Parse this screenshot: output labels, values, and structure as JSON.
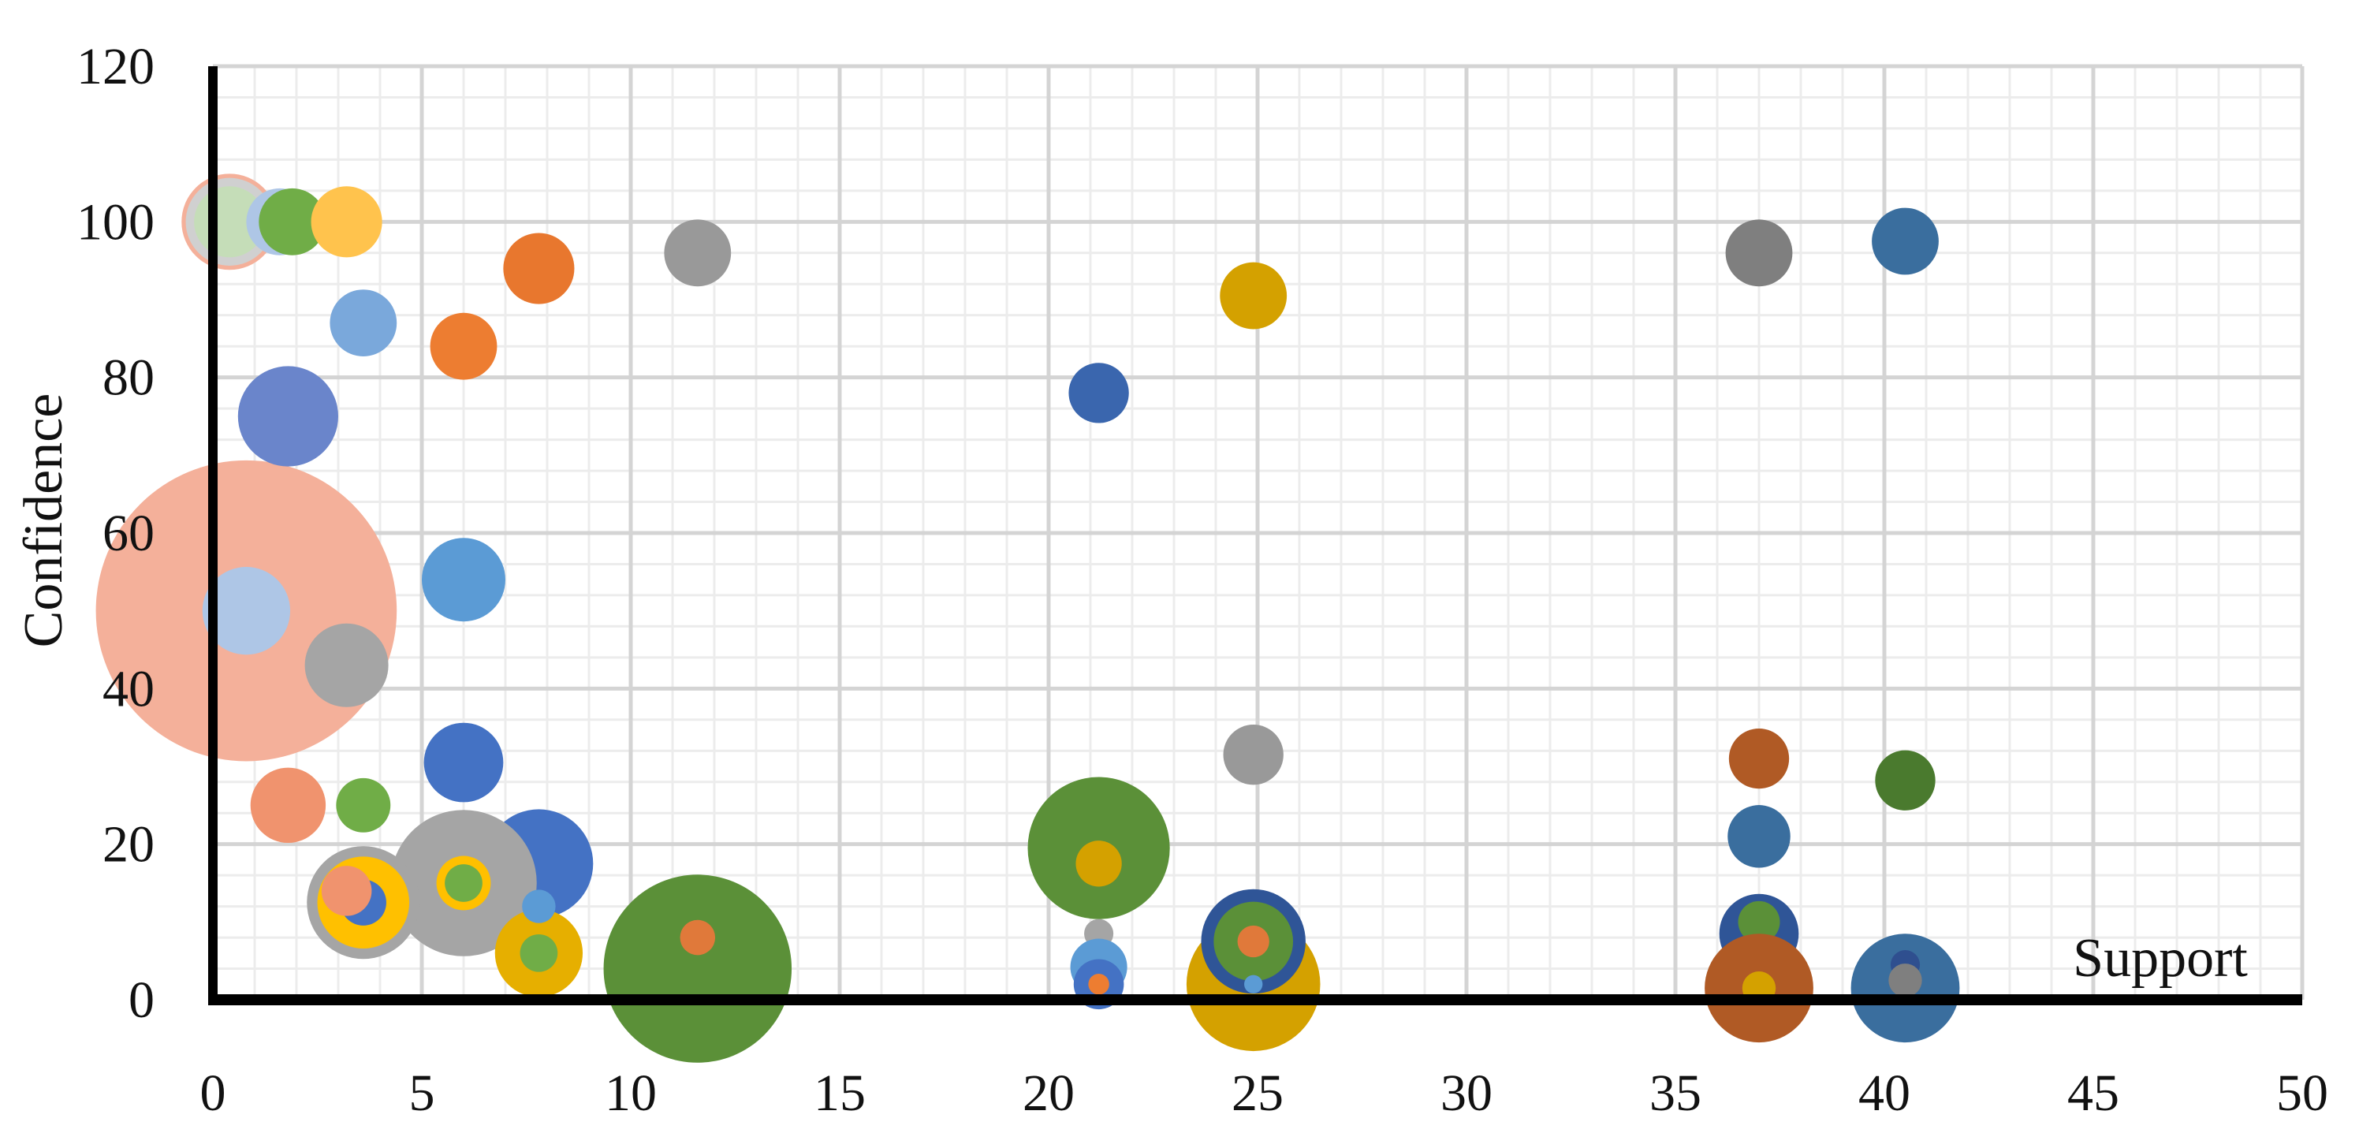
{
  "chart_data": {
    "type": "bubble",
    "xlabel": "Support",
    "ylabel": "Confidence",
    "xlim": [
      0,
      50
    ],
    "ylim": [
      0,
      120
    ],
    "x_ticks": [
      "0",
      "5",
      "10",
      "15",
      "20",
      "25",
      "30",
      "35",
      "40",
      "45",
      "50"
    ],
    "y_ticks": [
      "0",
      "20",
      "40",
      "60",
      "80",
      "100",
      "120"
    ],
    "grid": true,
    "minor_grid": true,
    "legend": "none",
    "points": [
      {
        "x": 0.8,
        "y": 50,
        "size": 3.6,
        "color": "#F4B09A"
      },
      {
        "x": 0.8,
        "y": 50,
        "size": 1.05,
        "color": "#AEC6E6"
      },
      {
        "x": 3.2,
        "y": 43,
        "size": 1.0,
        "color": "#A5A5A5"
      },
      {
        "x": 0.4,
        "y": 100,
        "size": 1.15,
        "color": "#F4B09A"
      },
      {
        "x": 0.4,
        "y": 100,
        "size": 1.05,
        "color": "#D0D0D0"
      },
      {
        "x": 0.4,
        "y": 100,
        "size": 0.85,
        "color": "#C5DDB8"
      },
      {
        "x": 1.6,
        "y": 100,
        "size": 0.8,
        "color": "#AEC6E6"
      },
      {
        "x": 1.9,
        "y": 100,
        "size": 0.8,
        "color": "#70AD47"
      },
      {
        "x": 3.2,
        "y": 100,
        "size": 0.85,
        "color": "#FFC34D"
      },
      {
        "x": 3.6,
        "y": 87,
        "size": 0.8,
        "color": "#7AA8DB"
      },
      {
        "x": 1.8,
        "y": 75,
        "size": 1.2,
        "color": "#6A85CB"
      },
      {
        "x": 6.0,
        "y": 84,
        "size": 0.8,
        "color": "#ED7D31"
      },
      {
        "x": 7.8,
        "y": 94,
        "size": 0.85,
        "color": "#E8772E"
      },
      {
        "x": 11.6,
        "y": 96,
        "size": 0.8,
        "color": "#999999"
      },
      {
        "x": 6.0,
        "y": 54,
        "size": 1.0,
        "color": "#5B9BD5"
      },
      {
        "x": 6.0,
        "y": 30.5,
        "size": 0.95,
        "color": "#4472C4"
      },
      {
        "x": 1.8,
        "y": 25,
        "size": 0.9,
        "color": "#F0936E"
      },
      {
        "x": 3.6,
        "y": 25,
        "size": 0.65,
        "color": "#70AD47"
      },
      {
        "x": 7.8,
        "y": 17.5,
        "size": 1.3,
        "color": "#4472C4"
      },
      {
        "x": 6.0,
        "y": 15,
        "size": 1.75,
        "color": "#A5A5A5"
      },
      {
        "x": 6.0,
        "y": 15,
        "size": 0.65,
        "color": "#FFC000"
      },
      {
        "x": 6.0,
        "y": 15,
        "size": 0.45,
        "color": "#70AD47"
      },
      {
        "x": 3.6,
        "y": 12.5,
        "size": 1.35,
        "color": "#A5A5A5"
      },
      {
        "x": 3.6,
        "y": 12.5,
        "size": 1.1,
        "color": "#FFC000"
      },
      {
        "x": 3.6,
        "y": 12.5,
        "size": 0.55,
        "color": "#4472C4"
      },
      {
        "x": 3.2,
        "y": 14,
        "size": 0.6,
        "color": "#F0936E"
      },
      {
        "x": 7.8,
        "y": 6,
        "size": 1.05,
        "color": "#E6AF00"
      },
      {
        "x": 7.8,
        "y": 6,
        "size": 0.45,
        "color": "#70AD47"
      },
      {
        "x": 7.8,
        "y": 12,
        "size": 0.4,
        "color": "#5B9BD5"
      },
      {
        "x": 11.6,
        "y": 4,
        "size": 2.25,
        "color": "#5B9038"
      },
      {
        "x": 11.6,
        "y": 8,
        "size": 0.42,
        "color": "#E0793A"
      },
      {
        "x": 21.2,
        "y": 78,
        "size": 0.72,
        "color": "#3A66AE"
      },
      {
        "x": 24.9,
        "y": 90.5,
        "size": 0.8,
        "color": "#D4A100"
      },
      {
        "x": 21.2,
        "y": 19.5,
        "size": 1.7,
        "color": "#5B9038"
      },
      {
        "x": 21.2,
        "y": 17.5,
        "size": 0.55,
        "color": "#D4A100"
      },
      {
        "x": 21.2,
        "y": 8.5,
        "size": 0.35,
        "color": "#A5A5A5"
      },
      {
        "x": 21.2,
        "y": 4.2,
        "size": 0.68,
        "color": "#5B9BD5"
      },
      {
        "x": 21.2,
        "y": 2,
        "size": 0.6,
        "color": "#4472C4"
      },
      {
        "x": 21.2,
        "y": 2,
        "size": 0.25,
        "color": "#ED7D31"
      },
      {
        "x": 24.9,
        "y": 31.5,
        "size": 0.72,
        "color": "#999999"
      },
      {
        "x": 24.9,
        "y": 2,
        "size": 1.6,
        "color": "#D4A100"
      },
      {
        "x": 24.9,
        "y": 7.5,
        "size": 1.25,
        "color": "#2F5597"
      },
      {
        "x": 24.9,
        "y": 7.5,
        "size": 0.95,
        "color": "#5B9038"
      },
      {
        "x": 24.9,
        "y": 7.5,
        "size": 0.38,
        "color": "#E0793A"
      },
      {
        "x": 24.9,
        "y": 2,
        "size": 0.22,
        "color": "#5B9BD5"
      },
      {
        "x": 37.0,
        "y": 96,
        "size": 0.8,
        "color": "#7F7F7F"
      },
      {
        "x": 40.5,
        "y": 97.5,
        "size": 0.8,
        "color": "#3A6E9E"
      },
      {
        "x": 37.0,
        "y": 31,
        "size": 0.72,
        "color": "#B05A25"
      },
      {
        "x": 40.5,
        "y": 28.2,
        "size": 0.72,
        "color": "#4A7A2E"
      },
      {
        "x": 37.0,
        "y": 21,
        "size": 0.75,
        "color": "#3A6E9E"
      },
      {
        "x": 37.0,
        "y": 8.5,
        "size": 0.95,
        "color": "#2F5597"
      },
      {
        "x": 37.0,
        "y": 10,
        "size": 0.5,
        "color": "#5B9038"
      },
      {
        "x": 37.0,
        "y": 1.5,
        "size": 1.3,
        "color": "#B05A25"
      },
      {
        "x": 37.0,
        "y": 1.5,
        "size": 0.4,
        "color": "#D4A100"
      },
      {
        "x": 40.5,
        "y": 1.5,
        "size": 1.3,
        "color": "#3A6E9E"
      },
      {
        "x": 40.5,
        "y": 4.5,
        "size": 0.35,
        "color": "#2F4F8F"
      },
      {
        "x": 40.5,
        "y": 2.5,
        "size": 0.4,
        "color": "#7F7F7F"
      }
    ]
  }
}
